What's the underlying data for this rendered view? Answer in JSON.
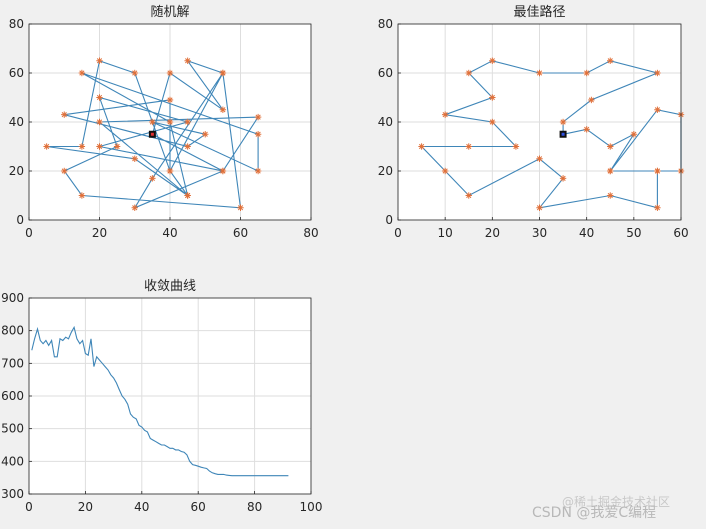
{
  "chart_data": [
    {
      "type": "line",
      "title": "随机解",
      "xlim": [
        0,
        80
      ],
      "ylim": [
        0,
        80
      ],
      "xticks": [
        0,
        20,
        40,
        60,
        80
      ],
      "yticks": [
        0,
        20,
        40,
        60,
        80
      ],
      "grid": true,
      "start_point": [
        35,
        35
      ],
      "route": [
        [
          35,
          35
        ],
        [
          40,
          60
        ],
        [
          55,
          45
        ],
        [
          45,
          65
        ],
        [
          55,
          60
        ],
        [
          35,
          17
        ],
        [
          30,
          5
        ],
        [
          55,
          20
        ],
        [
          20,
          30
        ],
        [
          45,
          40
        ],
        [
          20,
          50
        ],
        [
          25,
          30
        ],
        [
          10,
          20
        ],
        [
          15,
          10
        ],
        [
          60,
          5
        ],
        [
          55,
          60
        ],
        [
          40,
          20
        ],
        [
          45,
          10
        ],
        [
          40,
          40
        ],
        [
          15,
          60
        ],
        [
          65,
          35
        ],
        [
          65,
          20
        ],
        [
          35,
          40
        ],
        [
          50,
          35
        ],
        [
          45,
          30
        ],
        [
          10,
          43
        ],
        [
          40,
          49
        ],
        [
          40,
          20
        ],
        [
          30,
          60
        ],
        [
          20,
          65
        ],
        [
          15,
          30
        ],
        [
          5,
          30
        ],
        [
          30,
          25
        ],
        [
          45,
          10
        ],
        [
          20,
          40
        ],
        [
          65,
          42
        ],
        [
          55,
          20
        ],
        [
          35,
          35
        ]
      ]
    },
    {
      "type": "line",
      "title": "最佳路径",
      "xlim": [
        0,
        60
      ],
      "ylim": [
        0,
        80
      ],
      "xticks": [
        0,
        10,
        20,
        30,
        40,
        50,
        60
      ],
      "yticks": [
        0,
        20,
        40,
        60,
        80
      ],
      "grid": true,
      "start_point": [
        35,
        35
      ],
      "route": [
        [
          35,
          35
        ],
        [
          35,
          40
        ],
        [
          41,
          49
        ],
        [
          55,
          60
        ],
        [
          45,
          65
        ],
        [
          40,
          60
        ],
        [
          30,
          60
        ],
        [
          20,
          65
        ],
        [
          15,
          60
        ],
        [
          20,
          50
        ],
        [
          10,
          43
        ],
        [
          20,
          40
        ],
        [
          25,
          30
        ],
        [
          15,
          30
        ],
        [
          5,
          30
        ],
        [
          10,
          20
        ],
        [
          15,
          10
        ],
        [
          30,
          25
        ],
        [
          35,
          17
        ],
        [
          30,
          5
        ],
        [
          45,
          10
        ],
        [
          55,
          5
        ],
        [
          55,
          20
        ],
        [
          45,
          20
        ],
        [
          55,
          45
        ],
        [
          60,
          43
        ],
        [
          60,
          20
        ],
        [
          55,
          20
        ],
        [
          45,
          20
        ],
        [
          50,
          35
        ],
        [
          45,
          30
        ],
        [
          40,
          37
        ],
        [
          35,
          35
        ]
      ]
    },
    {
      "type": "line",
      "title": "收敛曲线",
      "xlim": [
        0,
        100
      ],
      "ylim": [
        300,
        900
      ],
      "xticks": [
        0,
        20,
        40,
        60,
        80,
        100
      ],
      "yticks": [
        300,
        400,
        500,
        600,
        700,
        800,
        900
      ],
      "grid": true,
      "x": [
        1,
        2,
        3,
        4,
        5,
        6,
        7,
        8,
        9,
        10,
        11,
        12,
        13,
        14,
        15,
        16,
        17,
        18,
        19,
        20,
        21,
        22,
        23,
        24,
        25,
        26,
        27,
        28,
        29,
        30,
        31,
        32,
        33,
        34,
        35,
        36,
        37,
        38,
        39,
        40,
        41,
        42,
        43,
        44,
        45,
        46,
        47,
        48,
        49,
        50,
        51,
        52,
        53,
        54,
        55,
        56,
        57,
        58,
        59,
        60,
        61,
        62,
        63,
        64,
        65,
        66,
        67,
        68,
        69,
        70,
        71,
        72,
        73,
        74,
        75,
        76,
        77,
        78,
        79,
        80,
        81,
        82,
        83,
        84,
        85,
        86,
        87,
        88,
        89,
        90,
        91,
        92
      ],
      "y": [
        740,
        775,
        805,
        770,
        760,
        770,
        755,
        770,
        720,
        720,
        775,
        770,
        780,
        775,
        795,
        810,
        775,
        760,
        770,
        730,
        725,
        775,
        690,
        720,
        710,
        700,
        690,
        680,
        665,
        655,
        640,
        620,
        600,
        590,
        575,
        545,
        535,
        530,
        510,
        505,
        495,
        490,
        470,
        465,
        460,
        455,
        450,
        450,
        445,
        440,
        440,
        435,
        435,
        430,
        428,
        420,
        400,
        390,
        388,
        385,
        382,
        380,
        378,
        370,
        365,
        362,
        360,
        360,
        360,
        358,
        357,
        356,
        356,
        356,
        356,
        356,
        356,
        356,
        356,
        356,
        356,
        356,
        356,
        356,
        356,
        356,
        356,
        356,
        356,
        356,
        356,
        356
      ]
    }
  ],
  "watermark": {
    "line1": "@稀土掘金技术社区",
    "line2": "CSDN @我爱C编程"
  }
}
